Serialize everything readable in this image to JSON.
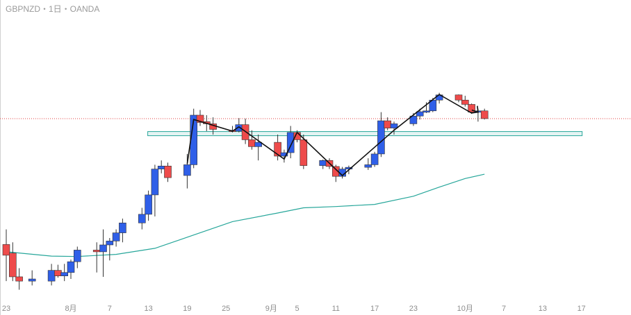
{
  "header": {
    "symbol_line": "GBPNZD・1日・OANDA"
  },
  "colors": {
    "up": "#2f5fe8",
    "down": "#ee4b4b",
    "wick": "#333333",
    "ma": "#26a69a",
    "zone": "#26a69a",
    "price_line": "#e04040"
  },
  "chart_data": {
    "type": "candlestick",
    "title": "GBPNZD・1日・OANDA",
    "x_tick_labels": [
      "23",
      "8月",
      "7",
      "13",
      "19",
      "25",
      "9月",
      "5",
      "11",
      "17",
      "23",
      "10月",
      "7",
      "13",
      "17"
    ],
    "ylim": [
      2.156,
      2.222
    ],
    "candles": [
      {
        "d": "Jul 22",
        "o": 2.1685,
        "h": 2.172,
        "l": 2.16,
        "c": 2.166
      },
      {
        "d": "Jul 23",
        "o": 2.1665,
        "h": 2.169,
        "l": 2.16,
        "c": 2.161
      },
      {
        "d": "Jul 24",
        "o": 2.161,
        "h": 2.163,
        "l": 2.158,
        "c": 2.16
      },
      {
        "d": "Jul 26",
        "o": 2.16,
        "h": 2.1625,
        "l": 2.159,
        "c": 2.1605
      },
      {
        "d": "Jul 29",
        "o": 2.16,
        "h": 2.164,
        "l": 2.159,
        "c": 2.1625
      },
      {
        "d": "Jul 30",
        "o": 2.1625,
        "h": 2.1638,
        "l": 2.1608,
        "c": 2.1612
      },
      {
        "d": "Jul 31",
        "o": 2.1612,
        "h": 2.164,
        "l": 2.16,
        "c": 2.162
      },
      {
        "d": "Aug 1",
        "o": 2.162,
        "h": 2.165,
        "l": 2.1605,
        "c": 2.1645
      },
      {
        "d": "Aug 2",
        "o": 2.1645,
        "h": 2.168,
        "l": 2.163,
        "c": 2.1672
      },
      {
        "d": "Aug 5",
        "o": 2.1672,
        "h": 2.169,
        "l": 2.162,
        "c": 2.1668
      },
      {
        "d": "Aug 6",
        "o": 2.1668,
        "h": 2.172,
        "l": 2.161,
        "c": 2.1684
      },
      {
        "d": "Aug 7",
        "o": 2.1684,
        "h": 2.17,
        "l": 2.1648,
        "c": 2.1693
      },
      {
        "d": "Aug 8",
        "o": 2.1693,
        "h": 2.172,
        "l": 2.168,
        "c": 2.1712
      },
      {
        "d": "Aug 9",
        "o": 2.1712,
        "h": 2.1745,
        "l": 2.169,
        "c": 2.1735
      },
      {
        "d": "Aug 12",
        "o": 2.1735,
        "h": 2.177,
        "l": 2.172,
        "c": 2.1755
      },
      {
        "d": "Aug 13",
        "o": 2.1755,
        "h": 2.181,
        "l": 2.174,
        "c": 2.18
      },
      {
        "d": "Aug 14",
        "o": 2.18,
        "h": 2.187,
        "l": 2.175,
        "c": 2.186
      },
      {
        "d": "Aug 15",
        "o": 2.186,
        "h": 2.188,
        "l": 2.185,
        "c": 2.1867
      },
      {
        "d": "Aug 16",
        "o": 2.1867,
        "h": 2.1875,
        "l": 2.183,
        "c": 2.184
      },
      {
        "d": "Aug 19",
        "o": 2.1845,
        "h": 2.1895,
        "l": 2.1815,
        "c": 2.187
      },
      {
        "d": "Aug 20",
        "o": 2.187,
        "h": 2.2,
        "l": 2.1862,
        "c": 2.1985
      },
      {
        "d": "Aug 21",
        "o": 2.1985,
        "h": 2.1997,
        "l": 2.196,
        "c": 2.1968
      },
      {
        "d": "Aug 22",
        "o": 2.197,
        "h": 2.1985,
        "l": 2.1948,
        "c": 2.1965
      },
      {
        "d": "Aug 23",
        "o": 2.1965,
        "h": 2.198,
        "l": 2.194,
        "c": 2.1952
      },
      {
        "d": "Aug 26",
        "o": 2.195,
        "h": 2.196,
        "l": 2.1945,
        "c": 2.1948
      },
      {
        "d": "Aug 27",
        "o": 2.1948,
        "h": 2.1978,
        "l": 2.1945,
        "c": 2.1963
      },
      {
        "d": "Aug 28",
        "o": 2.1963,
        "h": 2.1977,
        "l": 2.1918,
        "c": 2.1928
      },
      {
        "d": "Aug 29",
        "o": 2.1928,
        "h": 2.195,
        "l": 2.1905,
        "c": 2.1912
      },
      {
        "d": "Aug 30",
        "o": 2.1912,
        "h": 2.194,
        "l": 2.188,
        "c": 2.1922
      },
      {
        "d": "Sep 2",
        "o": 2.1922,
        "h": 2.194,
        "l": 2.188,
        "c": 2.189
      },
      {
        "d": "Sep 3",
        "o": 2.189,
        "h": 2.1905,
        "l": 2.1875,
        "c": 2.1898
      },
      {
        "d": "Sep 4",
        "o": 2.1898,
        "h": 2.196,
        "l": 2.1885,
        "c": 2.1945
      },
      {
        "d": "Sep 5",
        "o": 2.1945,
        "h": 2.195,
        "l": 2.1922,
        "c": 2.1928
      },
      {
        "d": "Sep 6",
        "o": 2.1928,
        "h": 2.194,
        "l": 2.186,
        "c": 2.1868
      },
      {
        "d": "Sep 9",
        "o": 2.1868,
        "h": 2.1882,
        "l": 2.186,
        "c": 2.188
      },
      {
        "d": "Sep 10",
        "o": 2.188,
        "h": 2.1885,
        "l": 2.186,
        "c": 2.1866
      },
      {
        "d": "Sep 11",
        "o": 2.1866,
        "h": 2.187,
        "l": 2.183,
        "c": 2.1843
      },
      {
        "d": "Sep 12",
        "o": 2.1843,
        "h": 2.1865,
        "l": 2.1838,
        "c": 2.186
      },
      {
        "d": "Sep 13",
        "o": 2.186,
        "h": 2.1868,
        "l": 2.1848,
        "c": 2.1864
      },
      {
        "d": "Sep 16",
        "o": 2.1864,
        "h": 2.1885,
        "l": 2.1858,
        "c": 2.187
      },
      {
        "d": "Sep 17",
        "o": 2.187,
        "h": 2.19,
        "l": 2.1865,
        "c": 2.1895
      },
      {
        "d": "Sep 18",
        "o": 2.1895,
        "h": 2.1992,
        "l": 2.1888,
        "c": 2.1972
      },
      {
        "d": "Sep 19",
        "o": 2.1972,
        "h": 2.198,
        "l": 2.195,
        "c": 2.1955
      },
      {
        "d": "Sep 20",
        "o": 2.1955,
        "h": 2.197,
        "l": 2.194,
        "c": 2.1965
      },
      {
        "d": "Sep 23",
        "o": 2.1965,
        "h": 2.199,
        "l": 2.196,
        "c": 2.1983
      },
      {
        "d": "Sep 24",
        "o": 2.1983,
        "h": 2.2,
        "l": 2.1975,
        "c": 2.1993
      },
      {
        "d": "Sep 25",
        "o": 2.1993,
        "h": 2.2015,
        "l": 2.199,
        "c": 2.1995
      },
      {
        "d": "Sep 26",
        "o": 2.1995,
        "h": 2.2025,
        "l": 2.1992,
        "c": 2.202
      },
      {
        "d": "Sep 27",
        "o": 2.202,
        "h": 2.2037,
        "l": 2.2012,
        "c": 2.2032
      },
      {
        "d": "Sep 30",
        "o": 2.2032,
        "h": 2.2033,
        "l": 2.2015,
        "c": 2.202
      },
      {
        "d": "Oct 1",
        "o": 2.202,
        "h": 2.203,
        "l": 2.2005,
        "c": 2.201
      },
      {
        "d": "Oct 2",
        "o": 2.201,
        "h": 2.2012,
        "l": 2.1988,
        "c": 2.1992
      },
      {
        "d": "Oct 3",
        "o": 2.1992,
        "h": 2.2,
        "l": 2.197,
        "c": 2.1995
      },
      {
        "d": "Oct 4",
        "o": 2.1995,
        "h": 2.2,
        "l": 2.1975,
        "c": 2.1977
      }
    ],
    "moving_average": [
      {
        "d": "Jul 22",
        "v": 2.1668
      },
      {
        "d": "Jul 29",
        "v": 2.1658
      },
      {
        "d": "Aug 2",
        "v": 2.1657
      },
      {
        "d": "Aug 8",
        "v": 2.1662
      },
      {
        "d": "Aug 14",
        "v": 2.1676
      },
      {
        "d": "Aug 20",
        "v": 2.1707
      },
      {
        "d": "Aug 26",
        "v": 2.1738
      },
      {
        "d": "Sep 2",
        "v": 2.1758
      },
      {
        "d": "Sep 6",
        "v": 2.177
      },
      {
        "d": "Sep 11",
        "v": 2.1773
      },
      {
        "d": "Sep 17",
        "v": 2.1778
      },
      {
        "d": "Sep 23",
        "v": 2.1797
      },
      {
        "d": "Sep 27",
        "v": 2.1818
      },
      {
        "d": "Oct 1",
        "v": 2.1838
      },
      {
        "d": "Oct 4",
        "v": 2.1848
      }
    ],
    "zigzag": [
      {
        "d": "Aug 19",
        "v": 2.1872
      },
      {
        "d": "Aug 20",
        "v": 2.1975
      },
      {
        "d": "Aug 26",
        "v": 2.1948
      },
      {
        "d": "Aug 27",
        "v": 2.1958
      },
      {
        "d": "Sep 3",
        "v": 2.1883
      },
      {
        "d": "Sep 5",
        "v": 2.1945
      },
      {
        "d": "Sep 12",
        "v": 2.1845
      },
      {
        "d": "Sep 20",
        "v": 2.195
      },
      {
        "d": "Sep 27",
        "v": 2.2033
      },
      {
        "d": "Oct 2",
        "v": 2.199
      },
      {
        "d": "Oct 3",
        "v": 2.1992
      }
    ],
    "zone": {
      "from": "Aug 13",
      "to": "Oct 19",
      "top": 2.1947,
      "bottom": 2.1941
    },
    "price_line": 2.1977,
    "grid": false
  }
}
